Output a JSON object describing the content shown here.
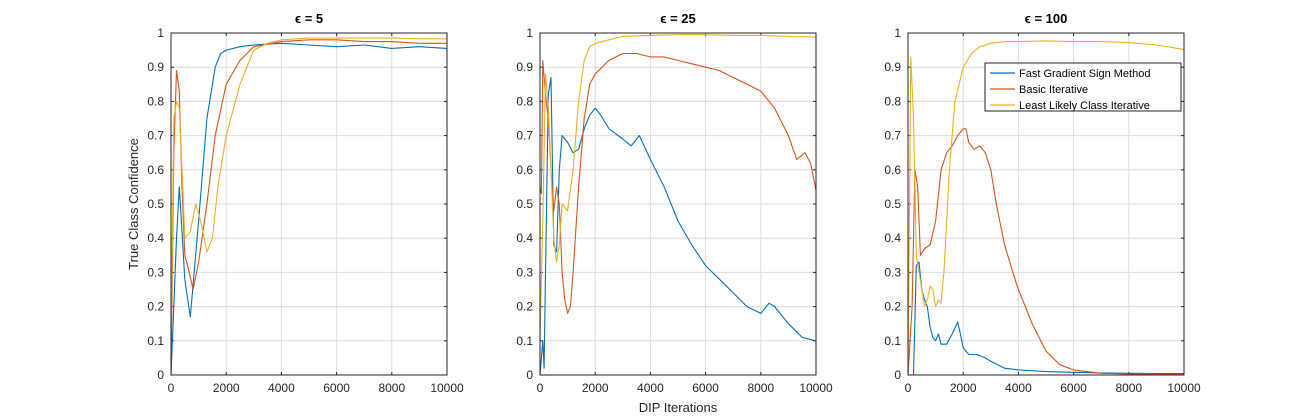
{
  "figure": {
    "xlabel": "DIP Iterations",
    "ylabel": "True Class Confidence"
  },
  "legend": {
    "placement": "top-right",
    "panel": 2,
    "entries": [
      {
        "label": "Fast Gradient Sign Method",
        "color": "#0072BD"
      },
      {
        "label": "Basic Iterative",
        "color": "#D95319"
      },
      {
        "label": "Least Likely Class Iterative",
        "color": "#EDB120"
      }
    ]
  },
  "colors": {
    "fgsm": "#0072BD",
    "bi": "#D95319",
    "ll": "#EDB120",
    "grid": "#dcdcdc",
    "axis": "#262626"
  },
  "chart_data": [
    {
      "type": "line",
      "title": "ϵ = 5",
      "xlim": [
        0,
        10000
      ],
      "ylim": [
        0,
        1
      ],
      "xticks": [
        "0",
        "2000",
        "4000",
        "6000",
        "8000",
        "10000"
      ],
      "yticks": [
        "0",
        "0.1",
        "0.2",
        "0.3",
        "0.4",
        "0.5",
        "0.6",
        "0.7",
        "0.8",
        "0.9",
        "1"
      ],
      "grid": true,
      "series": [
        {
          "name": "Fast Gradient Sign Method",
          "key": "fgsm",
          "x": [
            0,
            100,
            200,
            300,
            400,
            500,
            700,
            1000,
            1300,
            1600,
            1800,
            2000,
            2500,
            3000,
            4000,
            5000,
            6000,
            7000,
            8000,
            9000,
            10000
          ],
          "y": [
            0,
            0.2,
            0.4,
            0.55,
            0.42,
            0.28,
            0.17,
            0.45,
            0.75,
            0.9,
            0.94,
            0.95,
            0.96,
            0.965,
            0.97,
            0.965,
            0.96,
            0.965,
            0.955,
            0.96,
            0.955
          ]
        },
        {
          "name": "Basic Iterative",
          "key": "bi",
          "x": [
            0,
            100,
            200,
            300,
            400,
            500,
            600,
            800,
            1000,
            1300,
            1600,
            2000,
            2500,
            3000,
            4000,
            5000,
            6000,
            7000,
            8000,
            9000,
            10000
          ],
          "y": [
            0,
            0.65,
            0.89,
            0.83,
            0.55,
            0.35,
            0.32,
            0.25,
            0.33,
            0.5,
            0.7,
            0.85,
            0.92,
            0.96,
            0.975,
            0.98,
            0.98,
            0.975,
            0.975,
            0.97,
            0.97
          ]
        },
        {
          "name": "Least Likely Class Iterative",
          "key": "ll",
          "x": [
            0,
            100,
            200,
            300,
            400,
            500,
            700,
            900,
            1100,
            1300,
            1500,
            1700,
            2000,
            2500,
            3000,
            3500,
            4000,
            5000,
            6000,
            7000,
            8000,
            9000,
            10000
          ],
          "y": [
            0.1,
            0.75,
            0.8,
            0.78,
            0.6,
            0.4,
            0.42,
            0.5,
            0.44,
            0.36,
            0.4,
            0.55,
            0.7,
            0.85,
            0.95,
            0.97,
            0.98,
            0.985,
            0.985,
            0.985,
            0.985,
            0.983,
            0.983
          ]
        }
      ]
    },
    {
      "type": "line",
      "title": "ϵ = 25",
      "xlim": [
        0,
        10000
      ],
      "ylim": [
        0,
        1
      ],
      "xticks": [
        "0",
        "2000",
        "4000",
        "6000",
        "8000",
        "10000"
      ],
      "yticks": [
        "0",
        "0.1",
        "0.2",
        "0.3",
        "0.4",
        "0.5",
        "0.6",
        "0.7",
        "0.8",
        "0.9",
        "1"
      ],
      "grid": true,
      "series": [
        {
          "name": "Fast Gradient Sign Method",
          "key": "fgsm",
          "x": [
            0,
            100,
            150,
            200,
            300,
            400,
            500,
            600,
            700,
            800,
            1000,
            1200,
            1400,
            1600,
            1800,
            2000,
            2200,
            2500,
            3000,
            3300,
            3600,
            4000,
            4500,
            5000,
            5500,
            6000,
            6500,
            7000,
            7500,
            8000,
            8300,
            8500,
            9000,
            9500,
            10000
          ],
          "y": [
            0,
            0.1,
            0.02,
            0.3,
            0.82,
            0.87,
            0.38,
            0.36,
            0.6,
            0.7,
            0.68,
            0.65,
            0.66,
            0.72,
            0.76,
            0.78,
            0.76,
            0.72,
            0.69,
            0.67,
            0.7,
            0.63,
            0.55,
            0.45,
            0.38,
            0.32,
            0.28,
            0.24,
            0.2,
            0.18,
            0.21,
            0.2,
            0.15,
            0.11,
            0.1
          ]
        },
        {
          "name": "Basic Iterative",
          "key": "bi",
          "x": [
            0,
            50,
            100,
            200,
            300,
            400,
            500,
            600,
            700,
            800,
            900,
            1000,
            1100,
            1200,
            1400,
            1600,
            1800,
            2000,
            2500,
            3000,
            3500,
            4000,
            4500,
            5000,
            5500,
            6000,
            6500,
            7000,
            7500,
            8000,
            8500,
            9000,
            9300,
            9600,
            9800,
            10000
          ],
          "y": [
            0.55,
            0.53,
            0.92,
            0.82,
            0.75,
            0.6,
            0.48,
            0.55,
            0.5,
            0.3,
            0.22,
            0.18,
            0.2,
            0.3,
            0.55,
            0.75,
            0.85,
            0.88,
            0.92,
            0.94,
            0.94,
            0.93,
            0.93,
            0.92,
            0.91,
            0.9,
            0.89,
            0.87,
            0.85,
            0.83,
            0.78,
            0.7,
            0.63,
            0.65,
            0.62,
            0.54
          ]
        },
        {
          "name": "Least Likely Class Iterative",
          "key": "ll",
          "x": [
            0,
            100,
            200,
            300,
            400,
            500,
            600,
            700,
            800,
            1000,
            1200,
            1400,
            1600,
            1800,
            2000,
            2500,
            3000,
            4000,
            5000,
            6000,
            7000,
            8000,
            9000,
            10000
          ],
          "y": [
            0.1,
            0.45,
            0.88,
            0.78,
            0.6,
            0.4,
            0.33,
            0.38,
            0.5,
            0.48,
            0.6,
            0.8,
            0.92,
            0.96,
            0.97,
            0.98,
            0.99,
            0.993,
            0.995,
            0.995,
            0.993,
            0.993,
            0.99,
            0.988
          ]
        }
      ]
    },
    {
      "type": "line",
      "title": "ϵ = 100",
      "xlim": [
        0,
        10000
      ],
      "ylim": [
        0,
        1
      ],
      "xticks": [
        "0",
        "2000",
        "4000",
        "6000",
        "8000",
        "10000"
      ],
      "yticks": [
        "0",
        "0.1",
        "0.2",
        "0.3",
        "0.4",
        "0.5",
        "0.6",
        "0.7",
        "0.8",
        "0.9",
        "1"
      ],
      "grid": true,
      "series": [
        {
          "name": "Fast Gradient Sign Method",
          "key": "fgsm",
          "x": [
            0,
            200,
            300,
            400,
            500,
            600,
            700,
            800,
            900,
            1000,
            1100,
            1200,
            1400,
            1600,
            1800,
            1900,
            2000,
            2200,
            2500,
            2800,
            3000,
            3500,
            4000,
            5000,
            6000,
            7000,
            8000,
            9000,
            10000
          ],
          "y": [
            0,
            0,
            0.32,
            0.33,
            0.25,
            0.22,
            0.2,
            0.14,
            0.11,
            0.1,
            0.12,
            0.09,
            0.09,
            0.12,
            0.155,
            0.12,
            0.08,
            0.06,
            0.06,
            0.05,
            0.04,
            0.02,
            0.015,
            0.01,
            0.008,
            0.006,
            0.005,
            0.004,
            0.004
          ]
        },
        {
          "name": "Basic Iterative",
          "key": "bi",
          "x": [
            0,
            150,
            250,
            350,
            450,
            600,
            800,
            1000,
            1200,
            1400,
            1600,
            1800,
            2000,
            2100,
            2200,
            2400,
            2600,
            2800,
            3000,
            3200,
            3500,
            3800,
            4000,
            4500,
            5000,
            5500,
            6000,
            7000,
            8000,
            9000,
            10000
          ],
          "y": [
            0,
            0.2,
            0.6,
            0.55,
            0.35,
            0.37,
            0.38,
            0.45,
            0.6,
            0.65,
            0.67,
            0.7,
            0.72,
            0.72,
            0.68,
            0.66,
            0.67,
            0.65,
            0.6,
            0.5,
            0.38,
            0.3,
            0.25,
            0.15,
            0.07,
            0.03,
            0.015,
            0.005,
            0.003,
            0.002,
            0.002
          ]
        },
        {
          "name": "Least Likely Class Iterative",
          "key": "ll",
          "x": [
            0,
            100,
            200,
            300,
            400,
            500,
            600,
            700,
            800,
            900,
            1000,
            1100,
            1200,
            1300,
            1500,
            1700,
            2000,
            2300,
            2600,
            3000,
            3500,
            4000,
            5000,
            6000,
            7000,
            8000,
            9000,
            10000
          ],
          "y": [
            0,
            0.93,
            0.75,
            0.35,
            0.3,
            0.25,
            0.2,
            0.22,
            0.26,
            0.25,
            0.2,
            0.22,
            0.21,
            0.3,
            0.6,
            0.8,
            0.9,
            0.94,
            0.96,
            0.97,
            0.975,
            0.975,
            0.977,
            0.975,
            0.975,
            0.972,
            0.965,
            0.952
          ]
        }
      ]
    }
  ]
}
